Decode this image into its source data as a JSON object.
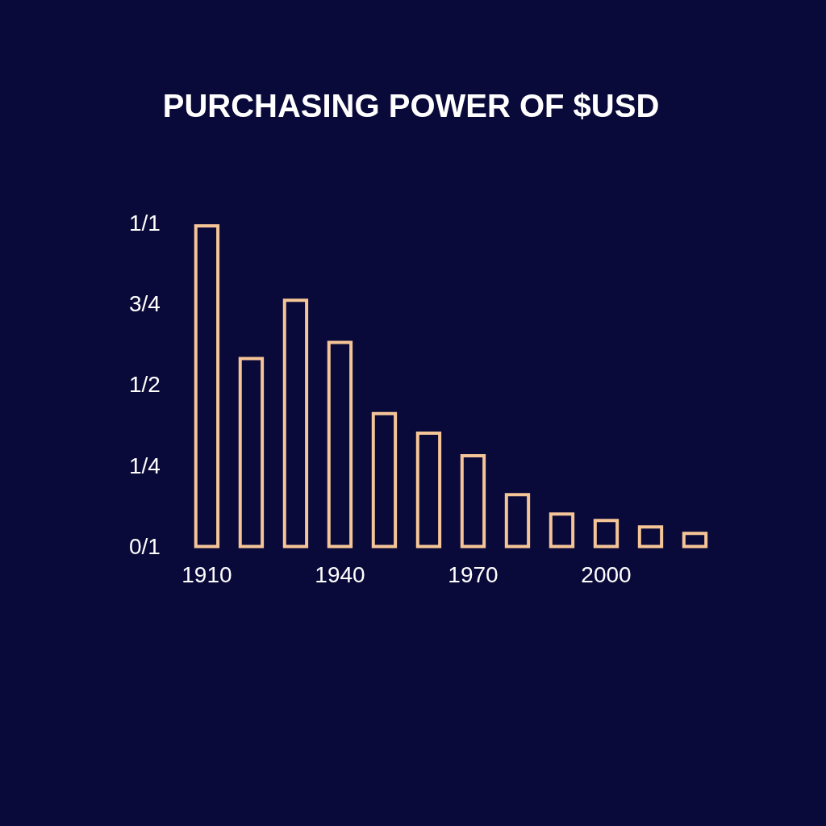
{
  "chart_data": {
    "type": "bar",
    "title": "PURCHASING POWER OF $USD",
    "categories": [
      "1910",
      null,
      null,
      "1940",
      null,
      null,
      "1970",
      null,
      null,
      "2000",
      null,
      null
    ],
    "values": [
      1.0,
      0.59,
      0.77,
      0.64,
      0.42,
      0.36,
      0.29,
      0.17,
      0.11,
      0.09,
      0.07,
      0.05
    ],
    "color": "#f5c597",
    "ylim": [
      0,
      1
    ],
    "yticks": [
      {
        "value": 0,
        "label": "0/1"
      },
      {
        "value": 0.25,
        "label": "1/4"
      },
      {
        "value": 0.5,
        "label": "1/2"
      },
      {
        "value": 0.75,
        "label": "3/4"
      },
      {
        "value": 1,
        "label": "1/1"
      }
    ]
  }
}
